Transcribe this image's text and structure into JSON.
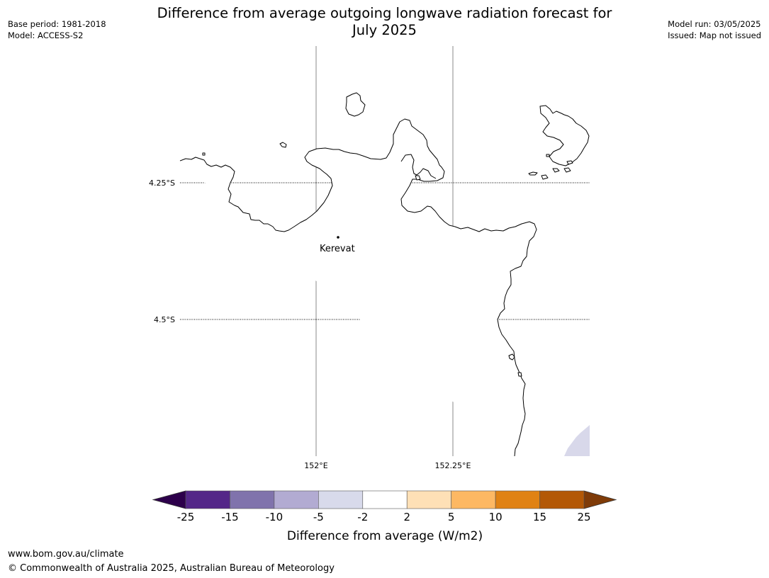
{
  "header": {
    "title_line1": "Difference from average outgoing longwave radiation forecast for",
    "title_line2": "July 2025",
    "base_period": "Base period: 1981-2018",
    "model": "Model: ACCESS-S2",
    "model_run": "Model run: 03/05/2025",
    "issued": "Issued: Map not issued"
  },
  "map": {
    "lat_labels": [
      "4.25°S",
      "4.5°S"
    ],
    "lon_labels": [
      "152°E",
      "152.25°E"
    ],
    "places": [
      {
        "name": "Kerevat"
      }
    ],
    "land_fill_color": "#ffffff",
    "anomaly_patch_color": "#d8d8ea",
    "coastline_color": "#000000",
    "gridline_style": "dotted (latitude), solid grey (longitude)"
  },
  "colorbar": {
    "label": "Difference from average (W/m2)",
    "tick_labels": [
      "-25",
      "-15",
      "-10",
      "-5",
      "-2",
      "2",
      "5",
      "10",
      "15",
      "25"
    ],
    "bin_colors": [
      "#542788",
      "#8073ac",
      "#b2abd2",
      "#d8daeb",
      "#ffffff",
      "#fee0b6",
      "#fdb863",
      "#e08214",
      "#b35806"
    ],
    "under_color": "#2d004b",
    "over_color": "#7f3b08"
  },
  "footer": {
    "url": "www.bom.gov.au/climate",
    "copyright": "© Commonwealth of Australia 2025, Australian Bureau of Meteorology"
  }
}
